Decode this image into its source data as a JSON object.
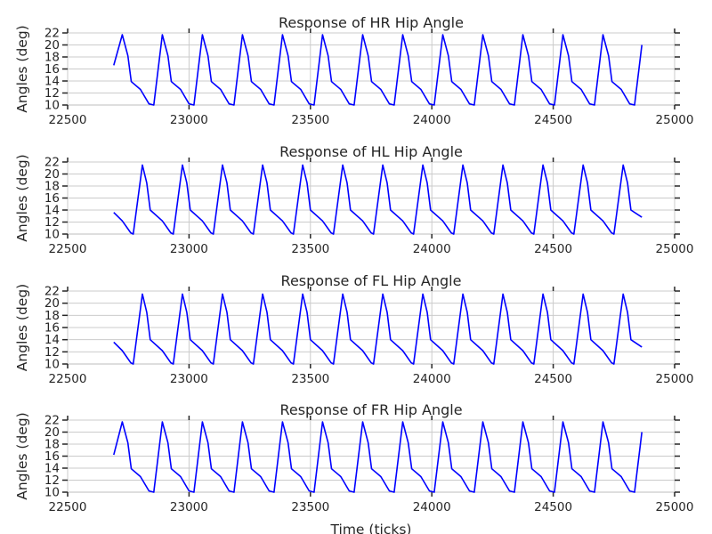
{
  "figure": {
    "xlabel": "Time (ticks)",
    "ylabel": "Angles (deg)"
  },
  "colors": {
    "line": "#0000ff",
    "grid": "#cbcbcb",
    "text": "#262626",
    "tick": "#262626"
  },
  "chart_data": [
    {
      "type": "line",
      "title": "Response of HR Hip Angle",
      "xlabel": "",
      "ylabel": "Angles (deg)",
      "xlim": [
        22500,
        25000
      ],
      "ylim": [
        10,
        22
      ],
      "xticks": [
        "22500",
        "23000",
        "23500",
        "24000",
        "24500",
        "25000"
      ],
      "yticks": [
        "10",
        "12",
        "14",
        "16",
        "18",
        "20",
        "22"
      ],
      "grid": true,
      "series": [
        {
          "x": [
            22690,
            22725,
            22748,
            22762,
            22800,
            22835,
            22855,
            22890,
            22913,
            22927,
            22965,
            23000,
            23020,
            23055,
            23078,
            23092,
            23130,
            23165,
            23185,
            23220,
            23243,
            23257,
            23295,
            23330,
            23350,
            23385,
            23408,
            23422,
            23460,
            23495,
            23515,
            23550,
            23573,
            23587,
            23625,
            23660,
            23680,
            23715,
            23738,
            23752,
            23790,
            23825,
            23845,
            23880,
            23903,
            23917,
            23955,
            23990,
            24010,
            24045,
            24068,
            24082,
            24120,
            24155,
            24175,
            24210,
            24233,
            24247,
            24285,
            24320,
            24340,
            24375,
            24398,
            24412,
            24450,
            24485,
            24505,
            24540,
            24563,
            24577,
            24615,
            24650,
            24670,
            24705,
            24728,
            24742,
            24780,
            24815,
            24835,
            24865
          ],
          "y": [
            16.6,
            21.7,
            18.2,
            13.9,
            12.6,
            10.2,
            10.0,
            21.7,
            18.2,
            13.9,
            12.6,
            10.2,
            10.0,
            21.7,
            18.2,
            13.9,
            12.6,
            10.2,
            10.0,
            21.7,
            18.2,
            13.9,
            12.6,
            10.2,
            10.0,
            21.7,
            18.2,
            13.9,
            12.6,
            10.2,
            10.0,
            21.7,
            18.2,
            13.9,
            12.6,
            10.2,
            10.0,
            21.7,
            18.2,
            13.9,
            12.6,
            10.2,
            10.0,
            21.7,
            18.2,
            13.9,
            12.6,
            10.2,
            10.0,
            21.7,
            18.2,
            13.9,
            12.6,
            10.2,
            10.0,
            21.7,
            18.2,
            13.9,
            12.6,
            10.2,
            10.0,
            21.7,
            18.2,
            13.9,
            12.6,
            10.2,
            10.0,
            21.7,
            18.2,
            13.9,
            12.6,
            10.2,
            10.0,
            21.7,
            18.2,
            13.9,
            12.6,
            10.2,
            10.0,
            20.0
          ]
        }
      ]
    },
    {
      "type": "line",
      "title": "Response of HL Hip Angle",
      "xlabel": "",
      "ylabel": "Angles (deg)",
      "xlim": [
        22500,
        25000
      ],
      "ylim": [
        10,
        22
      ],
      "xticks": [
        "22500",
        "23000",
        "23500",
        "24000",
        "24500",
        "25000"
      ],
      "yticks": [
        "10",
        "12",
        "14",
        "16",
        "18",
        "20",
        "22"
      ],
      "grid": true,
      "series": [
        {
          "x": [
            22690,
            22725,
            22760,
            22770,
            22808,
            22826,
            22840,
            22890,
            22925,
            22935,
            22973,
            22991,
            23005,
            23055,
            23090,
            23100,
            23138,
            23156,
            23170,
            23220,
            23255,
            23265,
            23303,
            23321,
            23335,
            23385,
            23420,
            23430,
            23468,
            23486,
            23500,
            23550,
            23585,
            23595,
            23633,
            23651,
            23665,
            23715,
            23750,
            23760,
            23798,
            23816,
            23830,
            23880,
            23915,
            23925,
            23963,
            23981,
            23995,
            24045,
            24080,
            24090,
            24128,
            24146,
            24160,
            24210,
            24245,
            24255,
            24293,
            24311,
            24325,
            24375,
            24410,
            24420,
            24458,
            24476,
            24490,
            24540,
            24575,
            24585,
            24623,
            24641,
            24655,
            24705,
            24740,
            24750,
            24788,
            24806,
            24820,
            24865
          ],
          "y": [
            13.6,
            12.2,
            10.2,
            10.0,
            21.5,
            18.5,
            14.0,
            12.2,
            10.2,
            10.0,
            21.5,
            18.5,
            14.0,
            12.2,
            10.2,
            10.0,
            21.5,
            18.5,
            14.0,
            12.2,
            10.2,
            10.0,
            21.5,
            18.5,
            14.0,
            12.2,
            10.2,
            10.0,
            21.5,
            18.5,
            14.0,
            12.2,
            10.2,
            10.0,
            21.5,
            18.5,
            14.0,
            12.2,
            10.2,
            10.0,
            21.5,
            18.5,
            14.0,
            12.2,
            10.2,
            10.0,
            21.5,
            18.5,
            14.0,
            12.2,
            10.2,
            10.0,
            21.5,
            18.5,
            14.0,
            12.2,
            10.2,
            10.0,
            21.5,
            18.5,
            14.0,
            12.2,
            10.2,
            10.0,
            21.5,
            18.5,
            14.0,
            12.2,
            10.2,
            10.0,
            21.5,
            18.5,
            14.0,
            12.2,
            10.2,
            10.0,
            21.5,
            18.5,
            14.0,
            12.8
          ]
        }
      ]
    },
    {
      "type": "line",
      "title": "Response of FL Hip Angle",
      "xlabel": "",
      "ylabel": "Angles (deg)",
      "xlim": [
        22500,
        25000
      ],
      "ylim": [
        10,
        22
      ],
      "xticks": [
        "22500",
        "23000",
        "23500",
        "24000",
        "24500",
        "25000"
      ],
      "yticks": [
        "10",
        "12",
        "14",
        "16",
        "18",
        "20",
        "22"
      ],
      "grid": true,
      "series": [
        {
          "x": [
            22690,
            22725,
            22760,
            22770,
            22808,
            22826,
            22840,
            22890,
            22925,
            22935,
            22973,
            22991,
            23005,
            23055,
            23090,
            23100,
            23138,
            23156,
            23170,
            23220,
            23255,
            23265,
            23303,
            23321,
            23335,
            23385,
            23420,
            23430,
            23468,
            23486,
            23500,
            23550,
            23585,
            23595,
            23633,
            23651,
            23665,
            23715,
            23750,
            23760,
            23798,
            23816,
            23830,
            23880,
            23915,
            23925,
            23963,
            23981,
            23995,
            24045,
            24080,
            24090,
            24128,
            24146,
            24160,
            24210,
            24245,
            24255,
            24293,
            24311,
            24325,
            24375,
            24410,
            24420,
            24458,
            24476,
            24490,
            24540,
            24575,
            24585,
            24623,
            24641,
            24655,
            24705,
            24740,
            24750,
            24788,
            24806,
            24820,
            24865
          ],
          "y": [
            13.6,
            12.2,
            10.2,
            10.0,
            21.5,
            18.5,
            14.0,
            12.2,
            10.2,
            10.0,
            21.5,
            18.5,
            14.0,
            12.2,
            10.2,
            10.0,
            21.5,
            18.5,
            14.0,
            12.2,
            10.2,
            10.0,
            21.5,
            18.5,
            14.0,
            12.2,
            10.2,
            10.0,
            21.5,
            18.5,
            14.0,
            12.2,
            10.2,
            10.0,
            21.5,
            18.5,
            14.0,
            12.2,
            10.2,
            10.0,
            21.5,
            18.5,
            14.0,
            12.2,
            10.2,
            10.0,
            21.5,
            18.5,
            14.0,
            12.2,
            10.2,
            10.0,
            21.5,
            18.5,
            14.0,
            12.2,
            10.2,
            10.0,
            21.5,
            18.5,
            14.0,
            12.2,
            10.2,
            10.0,
            21.5,
            18.5,
            14.0,
            12.2,
            10.2,
            10.0,
            21.5,
            18.5,
            14.0,
            12.2,
            10.2,
            10.0,
            21.5,
            18.5,
            14.0,
            12.8
          ]
        }
      ]
    },
    {
      "type": "line",
      "title": "Response of FR Hip Angle",
      "xlabel": "Time (ticks)",
      "ylabel": "Angles (deg)",
      "xlim": [
        22500,
        25000
      ],
      "ylim": [
        10,
        22
      ],
      "xticks": [
        "22500",
        "23000",
        "23500",
        "24000",
        "24500",
        "25000"
      ],
      "yticks": [
        "10",
        "12",
        "14",
        "16",
        "18",
        "20",
        "22"
      ],
      "grid": true,
      "series": [
        {
          "x": [
            22690,
            22725,
            22748,
            22762,
            22800,
            22835,
            22855,
            22890,
            22913,
            22927,
            22965,
            23000,
            23020,
            23055,
            23078,
            23092,
            23130,
            23165,
            23185,
            23220,
            23243,
            23257,
            23295,
            23330,
            23350,
            23385,
            23408,
            23422,
            23460,
            23495,
            23515,
            23550,
            23573,
            23587,
            23625,
            23660,
            23680,
            23715,
            23738,
            23752,
            23790,
            23825,
            23845,
            23880,
            23903,
            23917,
            23955,
            23990,
            24010,
            24045,
            24068,
            24082,
            24120,
            24155,
            24175,
            24210,
            24233,
            24247,
            24285,
            24320,
            24340,
            24375,
            24398,
            24412,
            24450,
            24485,
            24505,
            24540,
            24563,
            24577,
            24615,
            24650,
            24670,
            24705,
            24728,
            24742,
            24780,
            24815,
            24835,
            24865
          ],
          "y": [
            16.2,
            21.7,
            18.2,
            13.9,
            12.6,
            10.2,
            10.0,
            21.7,
            18.2,
            13.9,
            12.6,
            10.2,
            10.0,
            21.7,
            18.2,
            13.9,
            12.6,
            10.2,
            10.0,
            21.7,
            18.2,
            13.9,
            12.6,
            10.2,
            10.0,
            21.7,
            18.2,
            13.9,
            12.6,
            10.2,
            10.0,
            21.7,
            18.2,
            13.9,
            12.6,
            10.2,
            10.0,
            21.7,
            18.2,
            13.9,
            12.6,
            10.2,
            10.0,
            21.7,
            18.2,
            13.9,
            12.6,
            10.2,
            10.0,
            21.7,
            18.2,
            13.9,
            12.6,
            10.2,
            10.0,
            21.7,
            18.2,
            13.9,
            12.6,
            10.2,
            10.0,
            21.7,
            18.2,
            13.9,
            12.6,
            10.2,
            10.0,
            21.7,
            18.2,
            13.9,
            12.6,
            10.2,
            10.0,
            21.7,
            18.2,
            13.9,
            12.6,
            10.2,
            10.0,
            20.0
          ]
        }
      ]
    }
  ]
}
